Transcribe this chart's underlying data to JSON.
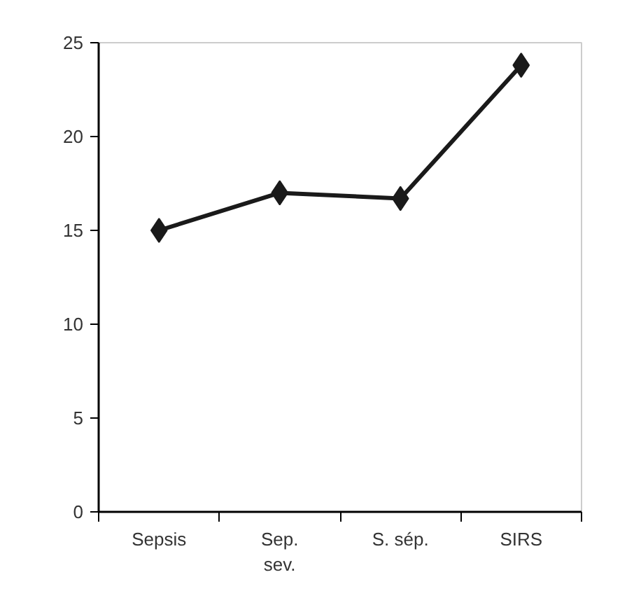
{
  "chart_data": {
    "type": "line",
    "categories": [
      "Sepsis",
      "Sep.\nsev.",
      "S. sép.",
      "SIRS"
    ],
    "series": [
      {
        "color": "#1a1a1a",
        "values": [
          15,
          17,
          16.7,
          23.8
        ]
      }
    ],
    "ylim": [
      0,
      25
    ],
    "yticks": [
      0,
      5,
      10,
      15,
      20,
      25
    ],
    "grid": false,
    "marker": "diamond",
    "line_style": "solid"
  }
}
